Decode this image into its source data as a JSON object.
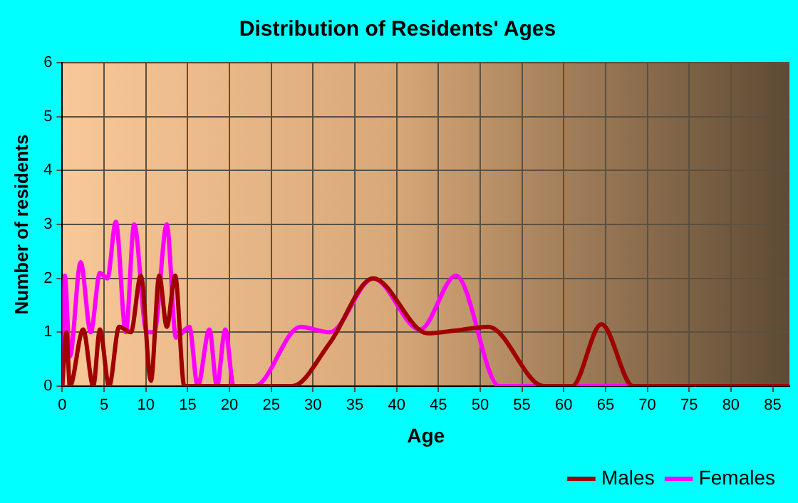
{
  "chart_data": {
    "type": "line",
    "title": "Distribution of Residents' Ages",
    "xlabel": "Age",
    "ylabel": "Number of residents",
    "xlim": [
      0,
      87
    ],
    "xticks": [
      0,
      5,
      10,
      15,
      20,
      25,
      30,
      35,
      40,
      45,
      50,
      55,
      60,
      65,
      70,
      75,
      80,
      85
    ],
    "ylim": [
      0,
      6
    ],
    "yticks": [
      0,
      1,
      2,
      3,
      4,
      5,
      6
    ],
    "grid": true,
    "legend": "bottom right",
    "marker": "none",
    "line_style": "solid",
    "series": [
      {
        "name": "Males",
        "color": "#a00000",
        "x": [
          0,
          0.5,
          0.9,
          2.5,
          3.7,
          4.5,
          5.6,
          6.8,
          8.2,
          9.4,
          10.6,
          11.6,
          12.5,
          13.5,
          14.6,
          20,
          27.5,
          32,
          37.2,
          43.7,
          47,
          51,
          57.6,
          61,
          64.5,
          68.3,
          75,
          87
        ],
        "values": [
          0,
          1,
          0,
          1.05,
          0,
          1.05,
          0,
          1.1,
          1,
          2.05,
          0.1,
          2.05,
          1.1,
          2.05,
          0,
          0,
          0,
          0.8,
          2,
          0.98,
          1.03,
          1.1,
          0,
          0,
          1.15,
          0,
          0,
          0
        ]
      },
      {
        "name": "Females",
        "color": "#ff00ff",
        "x": [
          0,
          0.3,
          0.9,
          2.2,
          3.4,
          4.5,
          5.4,
          6.4,
          7.6,
          8.6,
          10.1,
          11,
          12.5,
          13.6,
          15.2,
          16.2,
          17.6,
          18.5,
          19.5,
          20.5,
          23,
          28.5,
          32,
          37.2,
          42.8,
          47.1,
          52.3,
          60,
          70,
          87
        ],
        "values": [
          0,
          2.05,
          0.55,
          2.3,
          1,
          2.1,
          2,
          3.05,
          1,
          3,
          1,
          1,
          3,
          0.9,
          1.1,
          0,
          1.05,
          0,
          1.05,
          0,
          0,
          1.1,
          1,
          2,
          1.05,
          2.05,
          0,
          0,
          0,
          0
        ]
      }
    ]
  }
}
